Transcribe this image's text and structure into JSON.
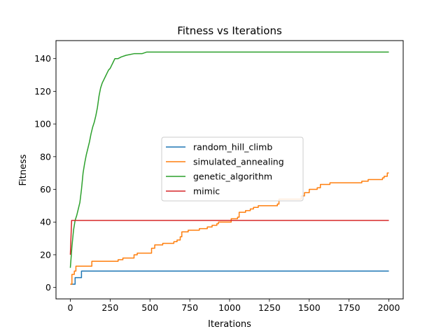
{
  "chart_data": {
    "type": "line",
    "title": "Fitness vs Iterations",
    "xlabel": "Iterations",
    "ylabel": "Fitness",
    "xlim": [
      -90,
      2090
    ],
    "ylim": [
      -7,
      151
    ],
    "xticks": [
      0,
      250,
      500,
      750,
      1000,
      1250,
      1500,
      1750,
      2000
    ],
    "yticks": [
      0,
      20,
      40,
      60,
      80,
      100,
      120,
      140
    ],
    "grid": false,
    "legend_position": "center",
    "series": [
      {
        "name": "random_hill_climb",
        "color": "#1f77b4",
        "step": true,
        "points": [
          [
            0,
            2
          ],
          [
            25,
            2
          ],
          [
            30,
            6
          ],
          [
            65,
            6
          ],
          [
            70,
            10
          ],
          [
            2000,
            10
          ]
        ]
      },
      {
        "name": "simulated_annealing",
        "color": "#ff7f0e",
        "step": true,
        "points": [
          [
            0,
            2
          ],
          [
            10,
            8
          ],
          [
            25,
            10
          ],
          [
            35,
            13
          ],
          [
            130,
            13
          ],
          [
            135,
            16
          ],
          [
            290,
            16
          ],
          [
            300,
            17
          ],
          [
            330,
            18
          ],
          [
            400,
            20
          ],
          [
            420,
            21
          ],
          [
            490,
            21
          ],
          [
            510,
            24
          ],
          [
            530,
            26
          ],
          [
            580,
            27
          ],
          [
            610,
            27
          ],
          [
            650,
            28
          ],
          [
            670,
            29
          ],
          [
            690,
            31
          ],
          [
            700,
            34
          ],
          [
            740,
            35
          ],
          [
            800,
            35
          ],
          [
            810,
            36
          ],
          [
            860,
            37
          ],
          [
            890,
            38
          ],
          [
            920,
            39
          ],
          [
            930,
            40
          ],
          [
            1000,
            40
          ],
          [
            1010,
            42
          ],
          [
            1050,
            43
          ],
          [
            1060,
            46
          ],
          [
            1100,
            47
          ],
          [
            1130,
            48
          ],
          [
            1150,
            49
          ],
          [
            1180,
            50
          ],
          [
            1300,
            51
          ],
          [
            1310,
            54
          ],
          [
            1440,
            54
          ],
          [
            1450,
            56
          ],
          [
            1470,
            58
          ],
          [
            1500,
            60
          ],
          [
            1550,
            61
          ],
          [
            1570,
            63
          ],
          [
            1630,
            64
          ],
          [
            1820,
            64
          ],
          [
            1830,
            65
          ],
          [
            1870,
            66
          ],
          [
            1960,
            67
          ],
          [
            1970,
            68
          ],
          [
            1990,
            70
          ],
          [
            2000,
            70
          ]
        ]
      },
      {
        "name": "genetic_algorithm",
        "color": "#2ca02c",
        "step": false,
        "points": [
          [
            0,
            12
          ],
          [
            10,
            25
          ],
          [
            20,
            35
          ],
          [
            30,
            41
          ],
          [
            40,
            44
          ],
          [
            50,
            48
          ],
          [
            60,
            52
          ],
          [
            70,
            60
          ],
          [
            80,
            70
          ],
          [
            90,
            76
          ],
          [
            100,
            81
          ],
          [
            110,
            85
          ],
          [
            120,
            89
          ],
          [
            130,
            94
          ],
          [
            140,
            98
          ],
          [
            150,
            101
          ],
          [
            160,
            105
          ],
          [
            170,
            110
          ],
          [
            180,
            117
          ],
          [
            190,
            122
          ],
          [
            200,
            125
          ],
          [
            210,
            127
          ],
          [
            220,
            129
          ],
          [
            230,
            131
          ],
          [
            240,
            133
          ],
          [
            250,
            134
          ],
          [
            260,
            136
          ],
          [
            270,
            138
          ],
          [
            280,
            140
          ],
          [
            300,
            140
          ],
          [
            320,
            141
          ],
          [
            350,
            142
          ],
          [
            400,
            143
          ],
          [
            450,
            143
          ],
          [
            480,
            144
          ],
          [
            2000,
            144
          ]
        ]
      },
      {
        "name": "mimic",
        "color": "#d62728",
        "step": false,
        "points": [
          [
            0,
            20
          ],
          [
            8,
            41
          ],
          [
            2000,
            41
          ]
        ]
      }
    ]
  }
}
